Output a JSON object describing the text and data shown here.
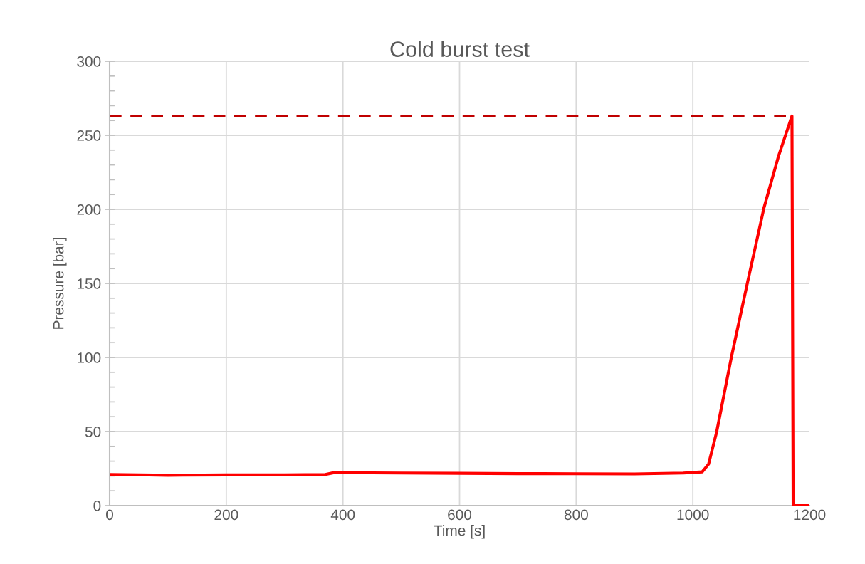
{
  "chart_data": {
    "type": "line",
    "title": "Cold burst test",
    "xlabel": "Time [s]",
    "ylabel": "Pressure [bar]",
    "xlim": [
      0,
      1200
    ],
    "xticks": [
      0,
      200,
      400,
      600,
      800,
      1000,
      1200
    ],
    "ylim": [
      0,
      300
    ],
    "yticks": [
      0,
      50,
      100,
      150,
      200,
      250,
      300
    ],
    "grid": true,
    "line_style": "solid",
    "marker": "none",
    "series": [
      {
        "color": "#ff0000",
        "x": [
          0,
          50,
          100,
          200,
          300,
          370,
          385,
          450,
          500,
          600,
          700,
          800,
          900,
          984,
          1016,
          1027,
          1041,
          1066,
          1094,
          1122,
          1147,
          1170,
          1172,
          1198
        ],
        "values": [
          21,
          20.8,
          20.5,
          20.7,
          20.8,
          21,
          22.3,
          22.1,
          22,
          21.8,
          21.6,
          21.5,
          21.4,
          22,
          22.8,
          28,
          50,
          100,
          151,
          201,
          236,
          263,
          0,
          0
        ]
      }
    ],
    "ref_lines": [
      {
        "axis": "y",
        "value": 263,
        "color": "#c00000",
        "line_style": "dashed"
      }
    ]
  }
}
